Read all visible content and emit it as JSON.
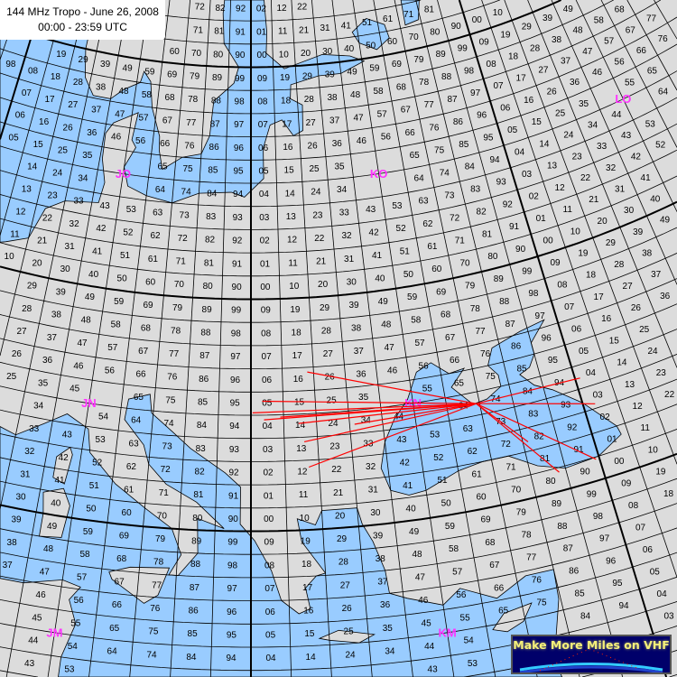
{
  "title": {
    "line1": "144 MHz Tropo - June 26, 2008",
    "line2": "00:00 - 23:59 UTC"
  },
  "logo": {
    "text": "Make More Miles on VHF"
  },
  "colors": {
    "land": "#dcdcdc",
    "sea": "#99ccff",
    "grid": "#000000",
    "field_label": "#ff33ff",
    "path": "#ff0000"
  },
  "grid": {
    "square_lon_deg": 2,
    "square_lat_deg": 1,
    "field_lon_deg": 20,
    "field_lat_deg": 10
  },
  "fields": [
    {
      "label": "JO",
      "lon": 10,
      "lat": 55
    },
    {
      "label": "KO",
      "lon": 30,
      "lat": 55
    },
    {
      "label": "LO",
      "lon": 50,
      "lat": 55
    },
    {
      "label": "JN",
      "lon": 10,
      "lat": 45
    },
    {
      "label": "KN",
      "lon": 30,
      "lat": 45
    },
    {
      "label": "JM",
      "lon": 10,
      "lat": 35
    },
    {
      "label": "KM",
      "lon": 30,
      "lat": 35
    }
  ],
  "seas": [
    {
      "name": "north-sea-baltic",
      "points": [
        [
          10.5,
          54.5
        ],
        [
          12,
          54.2
        ],
        [
          14,
          54
        ],
        [
          16,
          54.5
        ],
        [
          18.5,
          54.6
        ],
        [
          19.5,
          54.4
        ],
        [
          21,
          55.2
        ],
        [
          21,
          56.5
        ],
        [
          21.6,
          57.5
        ],
        [
          22.6,
          57.7
        ],
        [
          23.5,
          57
        ],
        [
          24.3,
          57.2
        ],
        [
          24.4,
          58.3
        ],
        [
          23.4,
          58.6
        ],
        [
          23.5,
          59.2
        ],
        [
          26,
          59.5
        ],
        [
          28,
          59.5
        ],
        [
          30.2,
          59.9
        ],
        [
          29,
          60.2
        ],
        [
          26.5,
          60.4
        ],
        [
          23,
          59.9
        ],
        [
          21.4,
          60.6
        ],
        [
          21.5,
          61.5
        ],
        [
          21.2,
          63.5
        ],
        [
          17.5,
          63.5
        ],
        [
          17.3,
          62.3
        ],
        [
          17.5,
          61
        ],
        [
          18.9,
          60
        ],
        [
          18.5,
          59.3
        ],
        [
          16.8,
          58.5
        ],
        [
          16.6,
          57
        ],
        [
          16,
          56.2
        ],
        [
          14.5,
          56
        ],
        [
          13,
          55.4
        ],
        [
          12.6,
          56.2
        ],
        [
          12.5,
          56.8
        ],
        [
          11.6,
          58
        ],
        [
          11.2,
          59.1
        ],
        [
          10.5,
          59.5
        ],
        [
          10.3,
          59
        ],
        [
          9,
          58.6
        ],
        [
          8,
          58.1
        ],
        [
          6.5,
          58.1
        ],
        [
          5.5,
          58.8
        ],
        [
          5,
          60
        ],
        [
          5,
          64
        ],
        [
          -8,
          64
        ],
        [
          -8,
          50
        ],
        [
          1.6,
          50.9
        ],
        [
          2.5,
          51.1
        ],
        [
          4,
          51.5
        ],
        [
          4.7,
          52.9
        ],
        [
          6,
          53.4
        ],
        [
          8.5,
          53.6
        ],
        [
          8.7,
          54.5
        ],
        [
          8.2,
          55.5
        ],
        [
          8.1,
          56.6
        ],
        [
          8.6,
          57.1
        ],
        [
          10.5,
          57.7
        ],
        [
          10.3,
          56.5
        ],
        [
          10.7,
          56.2
        ],
        [
          10,
          55.3
        ]
      ]
    },
    {
      "name": "lake-ladoga",
      "points": [
        [
          30,
          60.7
        ],
        [
          31.5,
          60.3
        ],
        [
          32.8,
          60.7
        ],
        [
          32.6,
          61.3
        ],
        [
          31,
          61.7
        ],
        [
          29.5,
          61.2
        ]
      ]
    },
    {
      "name": "lake-onega",
      "points": [
        [
          34.5,
          61.1
        ],
        [
          35.8,
          61.2
        ],
        [
          36.3,
          62
        ],
        [
          35.5,
          62.8
        ],
        [
          34.6,
          62.2
        ]
      ]
    },
    {
      "name": "black-sea",
      "points": [
        [
          27.6,
          42.4
        ],
        [
          28,
          43.5
        ],
        [
          28.7,
          44.4
        ],
        [
          29.7,
          45.2
        ],
        [
          30.5,
          46.3
        ],
        [
          31.5,
          46.6
        ],
        [
          32.5,
          46
        ],
        [
          33.5,
          46.1
        ],
        [
          32.5,
          45.4
        ],
        [
          33.6,
          44.5
        ],
        [
          34.5,
          44.6
        ],
        [
          35.5,
          45
        ],
        [
          35.5,
          45.5
        ],
        [
          35,
          46
        ],
        [
          35.5,
          46.7
        ],
        [
          37.5,
          47.1
        ],
        [
          39.2,
          47.3
        ],
        [
          38,
          46.5
        ],
        [
          38,
          46
        ],
        [
          37.5,
          45.5
        ],
        [
          36.8,
          45.3
        ],
        [
          37.5,
          44.7
        ],
        [
          38.5,
          44.3
        ],
        [
          40,
          43.4
        ],
        [
          41.5,
          42
        ],
        [
          41.6,
          41.6
        ],
        [
          40,
          41
        ],
        [
          38,
          40.9
        ],
        [
          36.5,
          41.3
        ],
        [
          35,
          42
        ],
        [
          33.5,
          42
        ],
        [
          32,
          41.8
        ],
        [
          30,
          41.2
        ],
        [
          29,
          41.1
        ],
        [
          28,
          41.4
        ]
      ]
    },
    {
      "name": "mediterranean",
      "points": [
        [
          -5.6,
          36
        ],
        [
          -4.5,
          36.7
        ],
        [
          -2,
          36.8
        ],
        [
          0,
          38.7
        ],
        [
          0,
          39.5
        ],
        [
          0.9,
          41
        ],
        [
          3.2,
          41.9
        ],
        [
          3.1,
          43
        ],
        [
          4.5,
          43.4
        ],
        [
          6,
          43.1
        ],
        [
          7.5,
          43.8
        ],
        [
          8.8,
          44.4
        ],
        [
          10.2,
          43.9
        ],
        [
          10.5,
          42.9
        ],
        [
          12.2,
          41.7
        ],
        [
          14,
          40.8
        ],
        [
          15.6,
          40
        ],
        [
          16.2,
          38.9
        ],
        [
          15.6,
          38
        ],
        [
          16.1,
          38
        ],
        [
          17.1,
          39
        ],
        [
          17,
          40.5
        ],
        [
          18.5,
          40.1
        ],
        [
          16.9,
          41.2
        ],
        [
          15.1,
          41.9
        ],
        [
          14,
          42.7
        ],
        [
          13.6,
          43.5
        ],
        [
          12.3,
          44.5
        ],
        [
          12.4,
          45.4
        ],
        [
          13.7,
          45.7
        ],
        [
          13.9,
          44.9
        ],
        [
          15.2,
          44.2
        ],
        [
          16.4,
          43.5
        ],
        [
          18.5,
          42.5
        ],
        [
          19.4,
          41.9
        ],
        [
          19.4,
          40.3
        ],
        [
          20.2,
          39.6
        ],
        [
          21.1,
          38.3
        ],
        [
          21.6,
          37
        ],
        [
          22.5,
          36.4
        ],
        [
          23.1,
          36.6
        ],
        [
          22.9,
          37.5
        ],
        [
          23.5,
          38
        ],
        [
          24,
          38.1
        ],
        [
          22.8,
          39.5
        ],
        [
          22.6,
          40.5
        ],
        [
          23.6,
          40.2
        ],
        [
          24,
          40.8
        ],
        [
          26,
          40.8
        ],
        [
          26.2,
          40.1
        ],
        [
          26.7,
          39.3
        ],
        [
          27.2,
          38
        ],
        [
          27.3,
          37
        ],
        [
          28.2,
          36.7
        ],
        [
          30,
          36.2
        ],
        [
          31,
          36.8
        ],
        [
          32.8,
          36.1
        ],
        [
          34.5,
          36.8
        ],
        [
          36,
          36.8
        ],
        [
          35.9,
          35.5
        ],
        [
          35,
          33
        ],
        [
          36,
          28
        ],
        [
          10.5,
          28
        ],
        [
          10.5,
          34
        ],
        [
          11,
          35.5
        ],
        [
          10.5,
          36.5
        ],
        [
          11,
          37.1
        ],
        [
          10,
          37.3
        ],
        [
          8,
          36.9
        ],
        [
          3,
          36.8
        ],
        [
          0,
          35.9
        ],
        [
          -2,
          35.1
        ],
        [
          -5.5,
          35.8
        ]
      ]
    }
  ],
  "islands": [
    {
      "name": "sardinia",
      "points": [
        [
          8.4,
          39
        ],
        [
          9.6,
          39.1
        ],
        [
          9.8,
          40.5
        ],
        [
          9.3,
          41.2
        ],
        [
          8.2,
          40.9
        ],
        [
          8.4,
          40
        ]
      ]
    },
    {
      "name": "corsica",
      "points": [
        [
          8.6,
          41.6
        ],
        [
          9.3,
          41.4
        ],
        [
          9.5,
          42.7
        ],
        [
          9.3,
          43
        ],
        [
          8.6,
          42.5
        ]
      ]
    },
    {
      "name": "sicily",
      "points": [
        [
          12.4,
          37.9
        ],
        [
          13.5,
          38.2
        ],
        [
          15.6,
          38.3
        ],
        [
          15.1,
          37.1
        ],
        [
          14.4,
          36.7
        ],
        [
          12.6,
          37.6
        ]
      ]
    },
    {
      "name": "crete",
      "points": [
        [
          23.5,
          35.3
        ],
        [
          24.5,
          35.6
        ],
        [
          26.3,
          35.3
        ],
        [
          25.5,
          35
        ],
        [
          24,
          35.2
        ]
      ]
    },
    {
      "name": "cyprus",
      "points": [
        [
          32.3,
          34.8
        ],
        [
          33,
          35.4
        ],
        [
          34.5,
          35.6
        ],
        [
          33.9,
          34.9
        ],
        [
          33,
          34.6
        ]
      ]
    }
  ],
  "paths": {
    "hub": [
      33.8,
      44.5
    ],
    "ends": [
      [
        23.6,
        46.8
      ],
      [
        20.7,
        45.6
      ],
      [
        20.1,
        45.1
      ],
      [
        20.8,
        44.8
      ],
      [
        23.2,
        43.8
      ],
      [
        26.3,
        44.4
      ],
      [
        23.4,
        42.7
      ],
      [
        22.9,
        44.6
      ],
      [
        21.8,
        44.9
      ],
      [
        40.3,
        44.45
      ],
      [
        40.7,
        43.2
      ],
      [
        39.8,
        40.9
      ],
      [
        37.6,
        40.8
      ],
      [
        36.3,
        42.4
      ]
    ]
  }
}
